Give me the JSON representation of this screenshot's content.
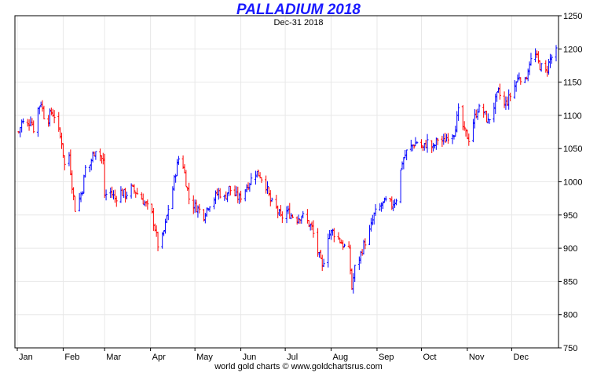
{
  "chart_data": {
    "type": "ohlc",
    "title": "PALLADIUM 2018",
    "subtitle": "Dec-31  2018",
    "footer": "world gold charts © www.goldchartsrus.com",
    "xlabel": "",
    "ylabel": "",
    "ylim": [
      750,
      1250
    ],
    "y_ticks": [
      750,
      800,
      850,
      900,
      950,
      1000,
      1050,
      1100,
      1150,
      1200,
      1250
    ],
    "x_tick_labels": [
      "Jan",
      "Feb",
      "Mar",
      "Apr",
      "May",
      "Jun",
      "Jul",
      "Aug",
      "Sep",
      "Oct",
      "Nov",
      "Dec"
    ],
    "grid": true,
    "up_color": "#0000ff",
    "down_color": "#ff0000",
    "frame_color": "#000000",
    "grid_color": "#e8e8e8",
    "points": [
      [
        "2018-01-02",
        1075
      ],
      [
        "2018-01-04",
        1090
      ],
      [
        "2018-01-08",
        1085
      ],
      [
        "2018-01-10",
        1095
      ],
      [
        "2018-01-12",
        1080
      ],
      [
        "2018-01-15",
        1110
      ],
      [
        "2018-01-17",
        1120
      ],
      [
        "2018-01-19",
        1100
      ],
      [
        "2018-01-22",
        1095
      ],
      [
        "2018-01-24",
        1105
      ],
      [
        "2018-01-26",
        1100
      ],
      [
        "2018-01-29",
        1075
      ],
      [
        "2018-01-31",
        1060
      ],
      [
        "2018-02-02",
        1025
      ],
      [
        "2018-02-05",
        1040
      ],
      [
        "2018-02-07",
        995
      ],
      [
        "2018-02-09",
        960
      ],
      [
        "2018-02-12",
        975
      ],
      [
        "2018-02-14",
        990
      ],
      [
        "2018-02-16",
        1020
      ],
      [
        "2018-02-19",
        1025
      ],
      [
        "2018-02-21",
        1040
      ],
      [
        "2018-02-23",
        1050
      ],
      [
        "2018-02-26",
        1040
      ],
      [
        "2018-02-28",
        1030
      ],
      [
        "2018-03-01",
        980
      ],
      [
        "2018-03-05",
        985
      ],
      [
        "2018-03-08",
        975
      ],
      [
        "2018-03-12",
        985
      ],
      [
        "2018-03-15",
        980
      ],
      [
        "2018-03-19",
        990
      ],
      [
        "2018-03-22",
        985
      ],
      [
        "2018-03-26",
        975
      ],
      [
        "2018-03-29",
        965
      ],
      [
        "2018-04-02",
        950
      ],
      [
        "2018-04-04",
        930
      ],
      [
        "2018-04-06",
        905
      ],
      [
        "2018-04-09",
        915
      ],
      [
        "2018-04-11",
        935
      ],
      [
        "2018-04-13",
        960
      ],
      [
        "2018-04-16",
        990
      ],
      [
        "2018-04-18",
        1015
      ],
      [
        "2018-04-20",
        1035
      ],
      [
        "2018-04-23",
        1025
      ],
      [
        "2018-04-25",
        1000
      ],
      [
        "2018-04-27",
        975
      ],
      [
        "2018-04-30",
        965
      ],
      [
        "2018-05-03",
        960
      ],
      [
        "2018-05-07",
        950
      ],
      [
        "2018-05-10",
        965
      ],
      [
        "2018-05-14",
        975
      ],
      [
        "2018-05-17",
        985
      ],
      [
        "2018-05-21",
        975
      ],
      [
        "2018-05-24",
        990
      ],
      [
        "2018-05-28",
        980
      ],
      [
        "2018-05-31",
        975
      ],
      [
        "2018-06-04",
        990
      ],
      [
        "2018-06-07",
        1000
      ],
      [
        "2018-06-11",
        1015
      ],
      [
        "2018-06-14",
        1010
      ],
      [
        "2018-06-18",
        995
      ],
      [
        "2018-06-21",
        970
      ],
      [
        "2018-06-25",
        960
      ],
      [
        "2018-06-28",
        945
      ],
      [
        "2018-07-02",
        955
      ],
      [
        "2018-07-05",
        950
      ],
      [
        "2018-07-09",
        945
      ],
      [
        "2018-07-12",
        950
      ],
      [
        "2018-07-16",
        940
      ],
      [
        "2018-07-19",
        930
      ],
      [
        "2018-07-23",
        895
      ],
      [
        "2018-07-26",
        870
      ],
      [
        "2018-07-30",
        920
      ],
      [
        "2018-08-02",
        925
      ],
      [
        "2018-08-06",
        915
      ],
      [
        "2018-08-09",
        905
      ],
      [
        "2018-08-13",
        895
      ],
      [
        "2018-08-15",
        840
      ],
      [
        "2018-08-17",
        870
      ],
      [
        "2018-08-20",
        885
      ],
      [
        "2018-08-23",
        905
      ],
      [
        "2018-08-27",
        925
      ],
      [
        "2018-08-30",
        950
      ],
      [
        "2018-09-04",
        965
      ],
      [
        "2018-09-07",
        970
      ],
      [
        "2018-09-11",
        965
      ],
      [
        "2018-09-14",
        975
      ],
      [
        "2018-09-18",
        1030
      ],
      [
        "2018-09-21",
        1045
      ],
      [
        "2018-09-25",
        1055
      ],
      [
        "2018-09-28",
        1060
      ],
      [
        "2018-10-02",
        1050
      ],
      [
        "2018-10-05",
        1060
      ],
      [
        "2018-10-09",
        1050
      ],
      [
        "2018-10-12",
        1065
      ],
      [
        "2018-10-16",
        1060
      ],
      [
        "2018-10-19",
        1070
      ],
      [
        "2018-10-23",
        1075
      ],
      [
        "2018-10-26",
        1105
      ],
      [
        "2018-10-30",
        1075
      ],
      [
        "2018-11-02",
        1065
      ],
      [
        "2018-11-05",
        1090
      ],
      [
        "2018-11-08",
        1110
      ],
      [
        "2018-11-12",
        1105
      ],
      [
        "2018-11-15",
        1090
      ],
      [
        "2018-11-19",
        1115
      ],
      [
        "2018-11-22",
        1135
      ],
      [
        "2018-11-26",
        1115
      ],
      [
        "2018-11-29",
        1125
      ],
      [
        "2018-12-03",
        1145
      ],
      [
        "2018-12-06",
        1160
      ],
      [
        "2018-12-10",
        1150
      ],
      [
        "2018-12-13",
        1180
      ],
      [
        "2018-12-17",
        1190
      ],
      [
        "2018-12-20",
        1175
      ],
      [
        "2018-12-24",
        1165
      ],
      [
        "2018-12-27",
        1185
      ],
      [
        "2018-12-31",
        1195
      ]
    ]
  }
}
